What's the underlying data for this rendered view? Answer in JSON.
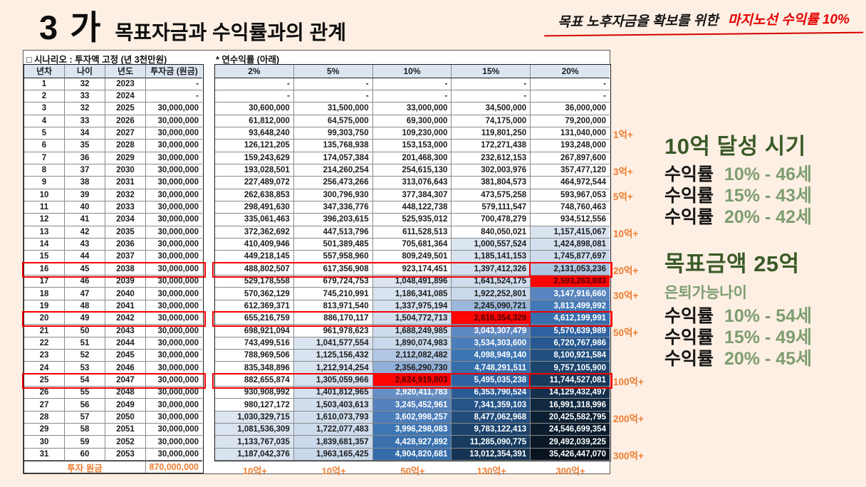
{
  "title": {
    "number": "3 가",
    "text": "목표자금과 수익률과의 관계"
  },
  "annotation": {
    "black": "목표 노후자금을 확보를 위한",
    "red": "마지노선 수익률 10%"
  },
  "scenario_label": "□ 시나리오 : 투자액 고정 (년 3천만원)",
  "rate_label": "* 연수익률 (아래)",
  "table": {
    "left_headers": [
      "년차",
      "나이",
      "년도",
      "투자금 (원금)"
    ],
    "rate_headers": [
      "2%",
      "5%",
      "10%",
      "15%",
      "20%"
    ],
    "rows": [
      [
        1,
        32,
        2023,
        null,
        null,
        null,
        null,
        null,
        null
      ],
      [
        2,
        33,
        2024,
        null,
        null,
        null,
        null,
        null,
        null
      ],
      [
        3,
        32,
        2025,
        30000000,
        30600000,
        31500000,
        33000000,
        34500000,
        36000000
      ],
      [
        4,
        33,
        2026,
        30000000,
        61812000,
        64575000,
        69300000,
        74175000,
        79200000
      ],
      [
        5,
        34,
        2027,
        30000000,
        93648240,
        99303750,
        109230000,
        119801250,
        131040000
      ],
      [
        6,
        35,
        2028,
        30000000,
        126121205,
        135768938,
        153153000,
        172271438,
        193248000
      ],
      [
        7,
        36,
        2029,
        30000000,
        159243629,
        174057384,
        201468300,
        232612153,
        267897600
      ],
      [
        8,
        37,
        2030,
        30000000,
        193028501,
        214260254,
        254615130,
        302003976,
        357477120
      ],
      [
        9,
        38,
        2031,
        30000000,
        227489072,
        256473266,
        313076643,
        381804573,
        464972544
      ],
      [
        10,
        39,
        2032,
        30000000,
        262638853,
        300796930,
        377384307,
        473575258,
        593967053
      ],
      [
        11,
        40,
        2033,
        30000000,
        298491630,
        347336776,
        448122738,
        579111547,
        748760463
      ],
      [
        12,
        41,
        2034,
        30000000,
        335061463,
        396203615,
        525935012,
        700478279,
        934512556
      ],
      [
        13,
        42,
        2035,
        30000000,
        372362692,
        447513796,
        611528513,
        840050021,
        1157415067
      ],
      [
        14,
        43,
        2036,
        30000000,
        410409946,
        501389485,
        705681364,
        1000557524,
        1424898081
      ],
      [
        15,
        44,
        2037,
        30000000,
        449218145,
        557958960,
        809249501,
        1185141153,
        1745877697
      ],
      [
        16,
        45,
        2038,
        30000000,
        488802507,
        617356908,
        923174451,
        1397412326,
        2131053236
      ],
      [
        17,
        46,
        2039,
        30000000,
        529178558,
        679724753,
        1048491896,
        1641524175,
        2593263883
      ],
      [
        18,
        47,
        2040,
        30000000,
        570362129,
        745210991,
        1186341085,
        1922252801,
        3147916660
      ],
      [
        19,
        48,
        2041,
        30000000,
        612369371,
        813971540,
        1337975194,
        2245090721,
        3813499992
      ],
      [
        20,
        49,
        2042,
        30000000,
        655216759,
        886170117,
        1504772713,
        2616354329,
        4612199991
      ],
      [
        21,
        50,
        2043,
        30000000,
        698921094,
        961978623,
        1688249985,
        3043307479,
        5570639989
      ],
      [
        22,
        51,
        2044,
        30000000,
        743499516,
        1041577554,
        1890074983,
        3534303600,
        6720767986
      ],
      [
        23,
        52,
        2045,
        30000000,
        788969506,
        1125156432,
        2112082482,
        4098949140,
        8100921584
      ],
      [
        24,
        53,
        2046,
        30000000,
        835348896,
        1212914254,
        2356290730,
        4748291511,
        9757105900
      ],
      [
        25,
        54,
        2047,
        30000000,
        882655874,
        1305059966,
        2624919803,
        5495035238,
        11744527081
      ],
      [
        26,
        55,
        2048,
        30000000,
        930908992,
        1401812965,
        2920411783,
        6353790524,
        14129432497
      ],
      [
        27,
        56,
        2049,
        30000000,
        980127172,
        1503403613,
        3245452961,
        7341359103,
        16991318996
      ],
      [
        28,
        57,
        2050,
        30000000,
        1030329715,
        1610073793,
        3602998257,
        8477062968,
        20425582795
      ],
      [
        29,
        58,
        2051,
        30000000,
        1081536309,
        1722077483,
        3996298083,
        9783122413,
        24546699354
      ],
      [
        30,
        59,
        2052,
        30000000,
        1133767035,
        1839681357,
        4428927892,
        11285090775,
        29492039225
      ],
      [
        31,
        60,
        2053,
        30000000,
        1187042376,
        1963165425,
        4904820681,
        13012354391,
        35426447070
      ]
    ],
    "footer": {
      "label": "투자 원금",
      "principal": "870,000,000",
      "rate_labels": [
        "10억+",
        "10억+",
        "50억+",
        "130억+",
        "300억+"
      ]
    }
  },
  "milestones": [
    {
      "row": 5,
      "label": "1억+"
    },
    {
      "row": 8,
      "label": "3억+"
    },
    {
      "row": 10,
      "label": "5억+"
    },
    {
      "row": 13,
      "label": "10억+"
    },
    {
      "row": 16,
      "label": "20억+"
    },
    {
      "row": 18,
      "label": "30억+"
    },
    {
      "row": 21,
      "label": "50억+"
    },
    {
      "row": 25,
      "label": "100억+"
    },
    {
      "row": 28,
      "label": "200억+"
    },
    {
      "row": 31,
      "label": "300억+"
    }
  ],
  "highlights": {
    "red_rows": [
      16,
      20,
      25
    ],
    "red_fill_cells": [
      {
        "row": 17,
        "rate_col": 4
      },
      {
        "row": 20,
        "rate_col": 3
      },
      {
        "row": 25,
        "rate_col": 2
      }
    ],
    "red_cell_boxes": [
      {
        "row": 16,
        "rate_col": 4
      },
      {
        "row": 20,
        "rate_col": 4
      },
      {
        "row": 25,
        "rate_col": 4
      }
    ]
  },
  "side_panel": {
    "sections": [
      {
        "title": "10억 달성 시기",
        "subtitle": null,
        "lines": [
          {
            "label": "수익률",
            "value": "10% - 46세"
          },
          {
            "label": "수익률",
            "value": "15% - 43세"
          },
          {
            "label": "수익률",
            "value": "20% - 42세"
          }
        ]
      },
      {
        "title": "목표금액 25억",
        "subtitle": "은퇴가능나이",
        "lines": [
          {
            "label": "수익률",
            "value": "10% - 54세"
          },
          {
            "label": "수익률",
            "value": "15% - 49세"
          },
          {
            "label": "수익률",
            "value": "20% - 45세"
          }
        ]
      }
    ]
  },
  "colors": {
    "page_bg": "#fdefe3",
    "accent_orange": "#ed7d31",
    "highlight_red": "#f40000",
    "red_cell_bg": "#fb0505",
    "red_cell_text": "#4d0000",
    "header_bg": "#dce6f1",
    "green_dark": "#3a5a28",
    "green_light": "#7e9d70",
    "text_black": "#1c1c1c"
  }
}
